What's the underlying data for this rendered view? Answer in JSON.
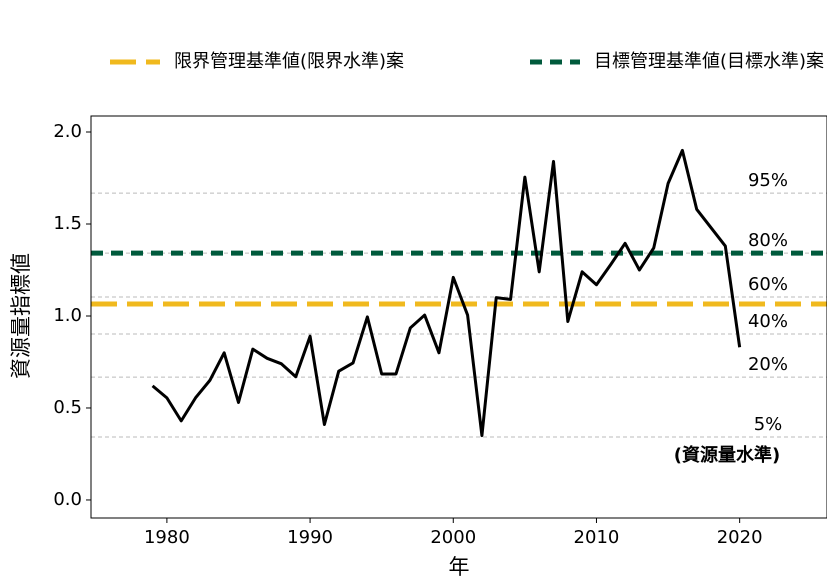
{
  "chart_data": {
    "type": "line",
    "x_label": "年",
    "y_label": "資源量指標値",
    "x": [
      1979,
      1980,
      1981,
      1982,
      1983,
      1984,
      1985,
      1986,
      1987,
      1988,
      1989,
      1990,
      1991,
      1992,
      1993,
      1994,
      1995,
      1996,
      1997,
      1998,
      1999,
      2000,
      2001,
      2002,
      2003,
      2004,
      2005,
      2006,
      2007,
      2008,
      2009,
      2010,
      2011,
      2012,
      2013,
      2014,
      2015,
      2016,
      2017,
      2018,
      2019,
      2020
    ],
    "series": [
      {
        "color": "#000000",
        "values": [
          0.62,
          0.555,
          0.43,
          0.555,
          0.65,
          0.8,
          0.53,
          0.82,
          0.77,
          0.74,
          0.67,
          0.89,
          0.41,
          0.7,
          0.745,
          0.995,
          0.685,
          0.685,
          0.935,
          1.005,
          0.8,
          1.21,
          1.005,
          0.35,
          1.1,
          1.09,
          1.755,
          1.24,
          1.84,
          0.97,
          1.24,
          1.17,
          1.28,
          1.395,
          1.25,
          1.37,
          1.72,
          1.9,
          1.58,
          1.48,
          1.38,
          0.83
        ]
      }
    ],
    "reference_lines": [
      {
        "name": "限界管理基準値(限界水準)案",
        "value": 1.065,
        "color": "#f0b91e",
        "dash": "long"
      },
      {
        "name": "目標管理基準値(目標水準)案",
        "value": 1.342,
        "color": "#005a3c",
        "dash": "short"
      }
    ],
    "levels": [
      {
        "label": "95%",
        "value": 1.668
      },
      {
        "label": "80%",
        "value": 1.342
      },
      {
        "label": "60%",
        "value": 1.103
      },
      {
        "label": "40%",
        "value": 0.902
      },
      {
        "label": "20%",
        "value": 0.668
      },
      {
        "label": "5%",
        "value": 0.342
      }
    ],
    "levels_title": "(資源量水準)",
    "xlim": [
      1974.7,
      2026.1
    ],
    "ylim": [
      -0.098,
      2.087
    ],
    "xticks": [
      1980,
      1990,
      2000,
      2010,
      2020
    ],
    "yticks": [
      {
        "value": 0,
        "label": "0.0"
      },
      {
        "value": 0.5,
        "label": "0.5"
      },
      {
        "value": 1,
        "label": "1.0"
      },
      {
        "value": 1.5,
        "label": "1.5"
      },
      {
        "value": 2,
        "label": "2.0"
      }
    ],
    "legend_position": "top"
  }
}
